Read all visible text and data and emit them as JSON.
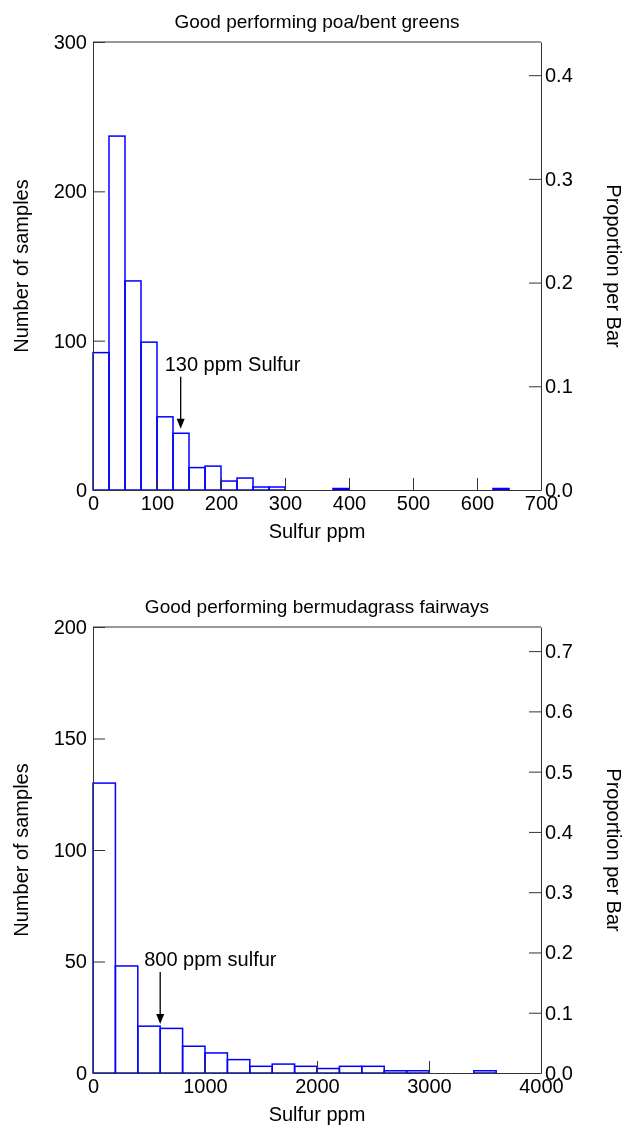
{
  "chart_data": [
    {
      "type": "histogram",
      "title": "Good performing poa/bent greens",
      "xlabel": "Sulfur ppm",
      "ylabel": "Number of samples",
      "y2label": "Proportion per Bar",
      "bins": [
        0,
        25,
        50,
        75,
        100,
        125,
        150,
        175,
        200,
        225,
        250,
        275,
        300,
        325,
        350,
        375,
        400,
        425,
        450,
        475,
        500,
        525,
        550,
        575,
        600,
        625,
        650,
        675,
        700
      ],
      "values": [
        92,
        237,
        140,
        99,
        49,
        38,
        15,
        16,
        6,
        8,
        2,
        2,
        0,
        0,
        0,
        1,
        0,
        0,
        0,
        0,
        0,
        0,
        0,
        0,
        0,
        1,
        0,
        0
      ],
      "color": "#0000ff",
      "xlim": [
        0,
        700
      ],
      "xticks": [
        0,
        100,
        200,
        300,
        400,
        500,
        600,
        700
      ],
      "ylim": [
        0,
        300
      ],
      "yticks": [
        0,
        100,
        200,
        300
      ],
      "y2lim": [
        0,
        0.432
      ],
      "y2ticks": [
        {
          "value": 0,
          "label": "0.0"
        },
        0.1,
        0.2,
        0.3,
        0.4
      ],
      "grid": false,
      "annotations": [
        {
          "text": "130 ppm Sulfur",
          "x": 137,
          "y": 41
        }
      ]
    },
    {
      "type": "histogram",
      "title": "Good performing bermudagrass fairways",
      "xlabel": "Sulfur ppm",
      "ylabel": "Number of samples",
      "y2label": "Proportion per Bar",
      "bins": [
        0,
        200,
        400,
        600,
        800,
        1000,
        1200,
        1400,
        1600,
        1800,
        2000,
        2200,
        2400,
        2600,
        2800,
        3000,
        3200,
        3400,
        3600,
        3800,
        4000
      ],
      "values": [
        130,
        48,
        21,
        20,
        12,
        9,
        6,
        3,
        4,
        3,
        2,
        3,
        3,
        1,
        1,
        0,
        0,
        1,
        0,
        0
      ],
      "color": "#0000ff",
      "xlim": [
        0,
        4000
      ],
      "xticks": [
        0,
        1000,
        2000,
        3000,
        4000
      ],
      "ylim": [
        0,
        200
      ],
      "yticks": [
        0,
        50,
        100,
        150,
        200
      ],
      "y2lim": [
        0,
        0.74
      ],
      "y2ticks": [
        {
          "value": 0,
          "label": "0.0"
        },
        0.1,
        0.2,
        0.3,
        0.4,
        0.5,
        0.6,
        0.7
      ],
      "grid": false,
      "annotations": [
        {
          "text": "800 ppm sulfur",
          "x": 600,
          "y": 22
        }
      ]
    }
  ]
}
